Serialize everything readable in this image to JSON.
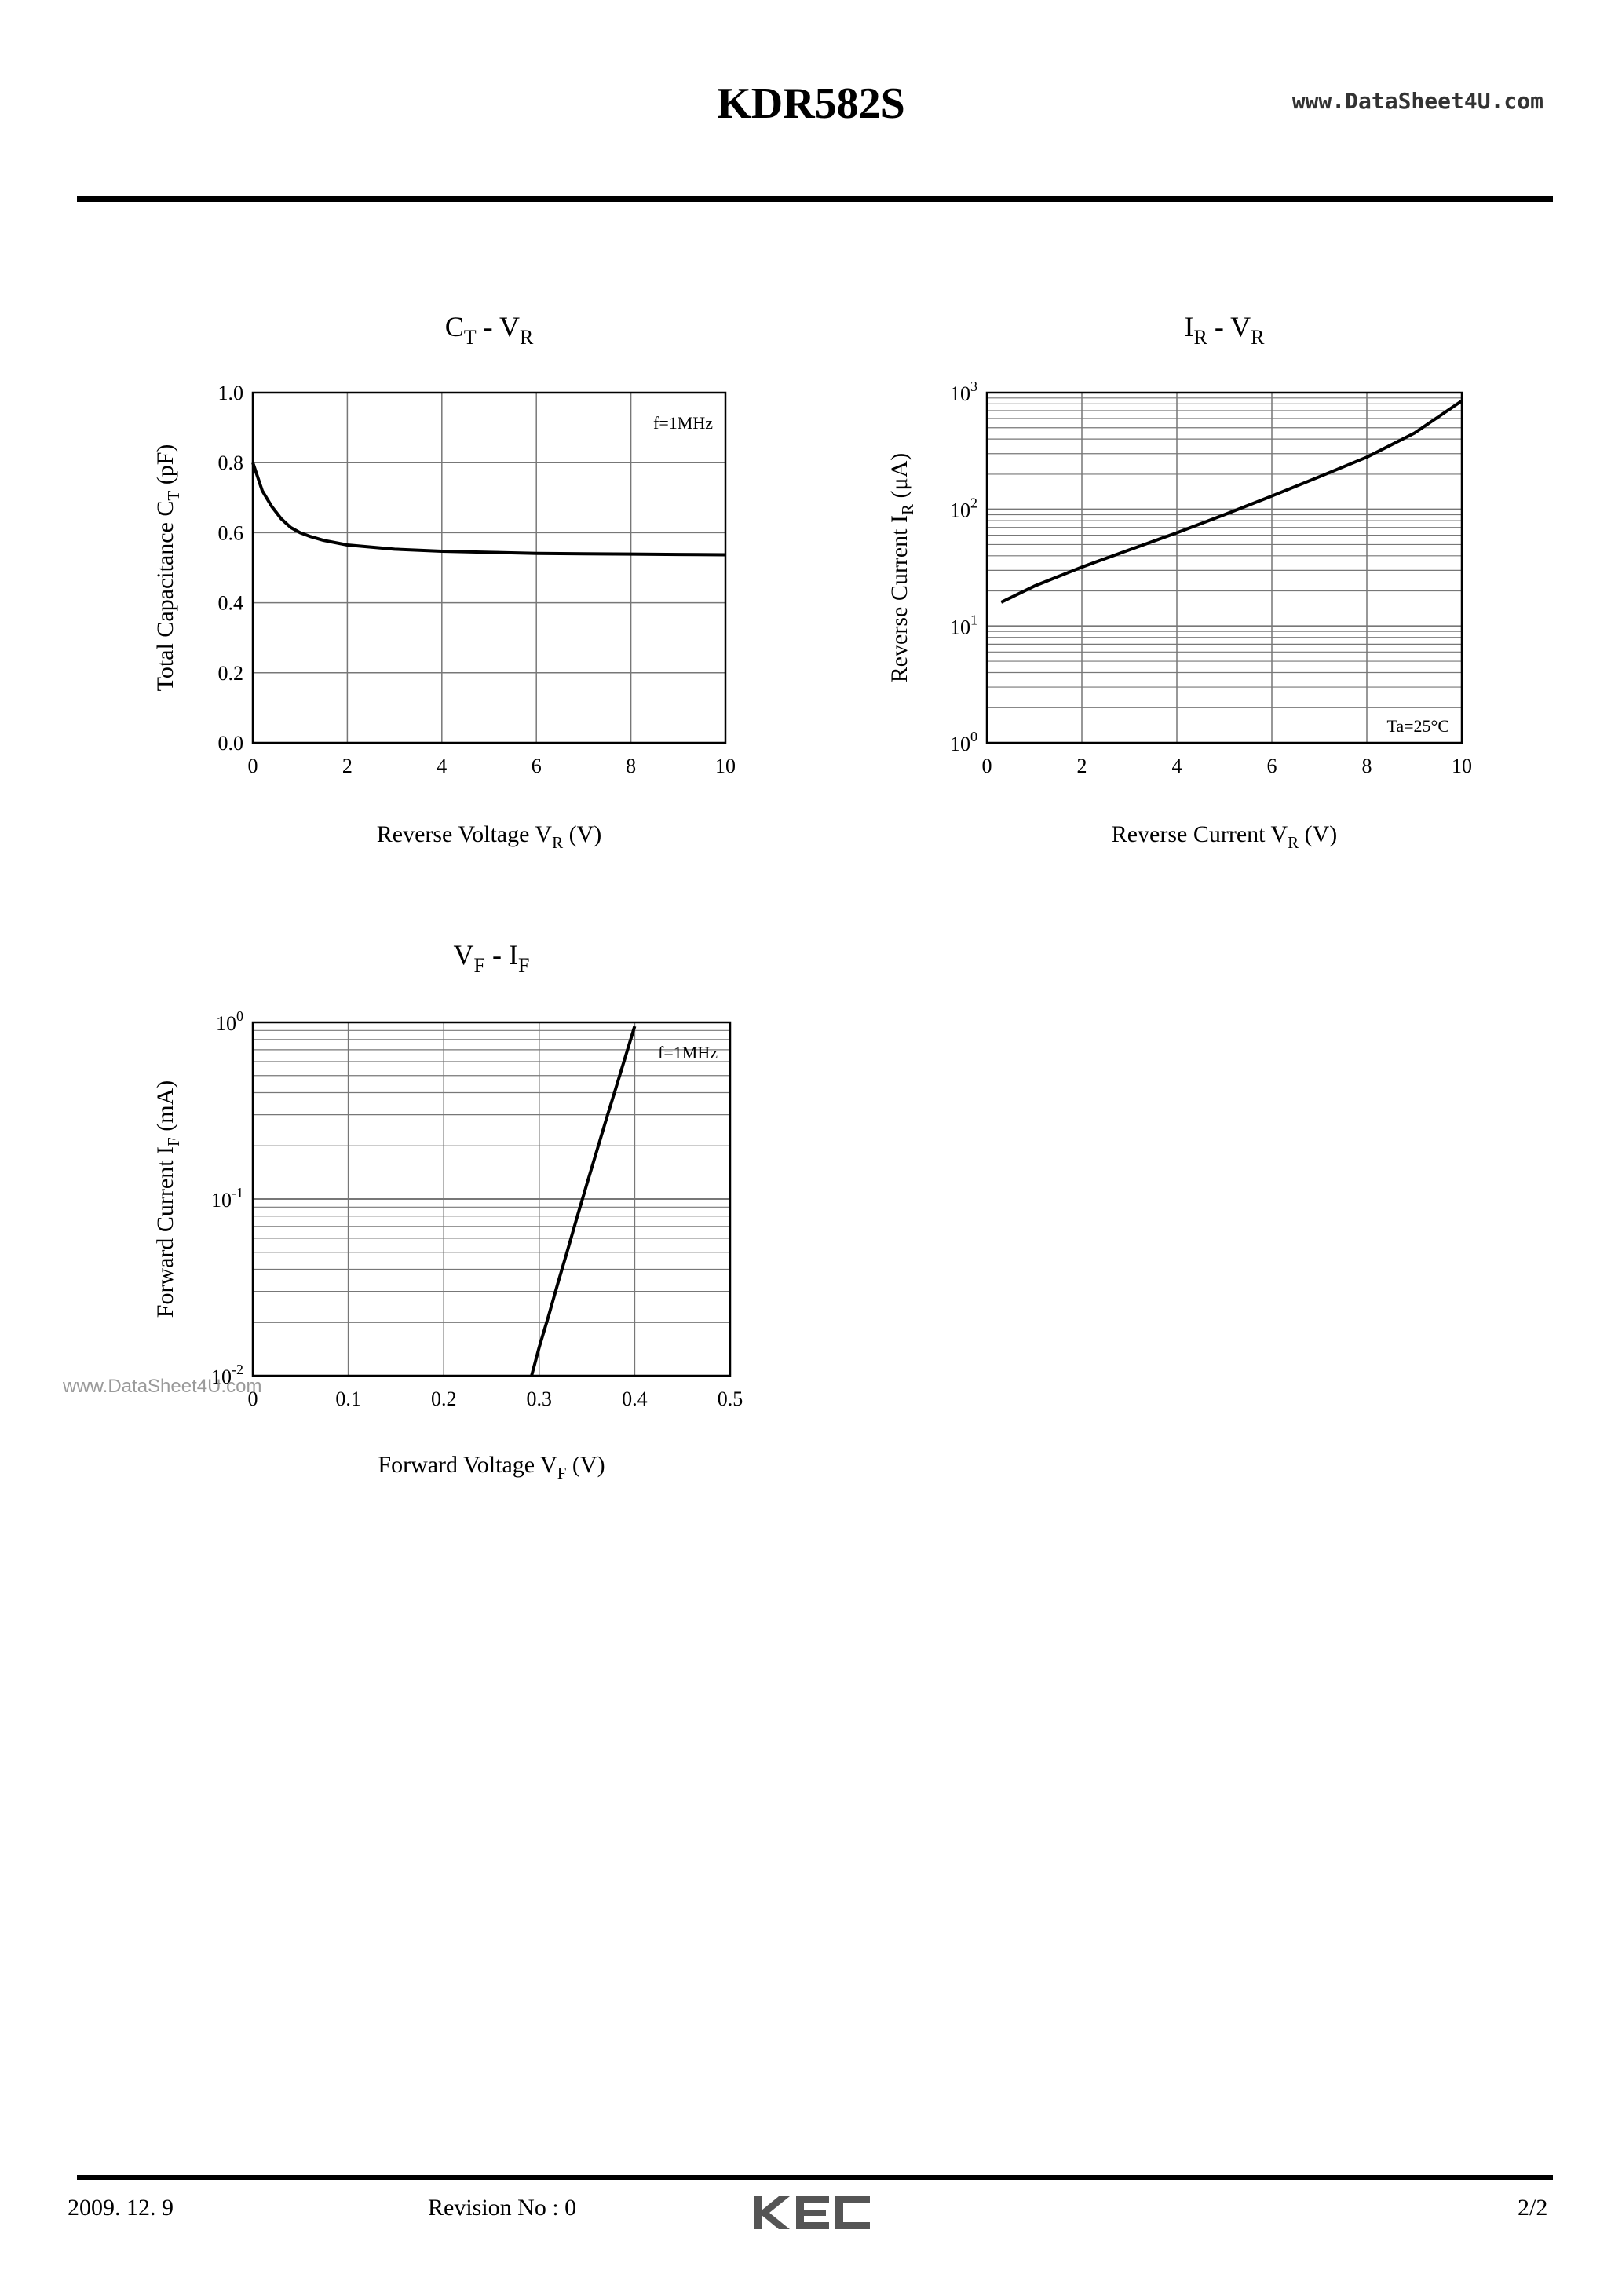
{
  "header": {
    "title": "KDR582S",
    "site": "www.DataSheet4U.com"
  },
  "watermark": "www.DataSheet4U.com",
  "footer": {
    "date": "2009. 12.  9",
    "revision": "Revision No : 0",
    "logo": "KEC",
    "page": "2/2"
  },
  "chart_data": [
    {
      "type": "line",
      "title": {
        "main": "C",
        "sub": "T",
        "sep": " - ",
        "main2": "V",
        "sub2": "R"
      },
      "xlabel": {
        "pre": "Reverse Voltage  V",
        "sub": "R",
        "post": " (V)"
      },
      "ylabel": {
        "pre": "Total Capacitance  C",
        "sub": "T",
        "post": " (pF)"
      },
      "annotation": "f=1MHz",
      "x_scale": "linear",
      "y_scale": "linear",
      "xlim": [
        0,
        10
      ],
      "ylim": [
        0.0,
        1.0
      ],
      "x_ticks": [
        "0",
        "2",
        "4",
        "6",
        "8",
        "10"
      ],
      "y_ticks": [
        "0.0",
        "0.2",
        "0.4",
        "0.6",
        "0.8",
        "1.0"
      ],
      "grid": true,
      "series": [
        {
          "x": [
            0.0,
            0.1,
            0.2,
            0.4,
            0.6,
            0.8,
            1.0,
            1.2,
            1.5,
            2.0,
            3.0,
            4.0,
            5.0,
            6.0,
            7.0,
            8.0,
            9.0,
            10.0
          ],
          "y": [
            0.8,
            0.76,
            0.72,
            0.675,
            0.64,
            0.615,
            0.6,
            0.59,
            0.578,
            0.565,
            0.553,
            0.547,
            0.544,
            0.541,
            0.54,
            0.539,
            0.538,
            0.537
          ]
        }
      ]
    },
    {
      "type": "line",
      "title": {
        "main": "I",
        "sub": "R",
        "sep": " - ",
        "main2": "V",
        "sub2": "R"
      },
      "xlabel": {
        "pre": "Reverse Current V",
        "sub": "R",
        "post": " (V)"
      },
      "ylabel": {
        "pre": "Reverse Current I",
        "sub": "R",
        "post": " (μA)"
      },
      "annotation": "Ta=25°C",
      "x_scale": "linear",
      "y_scale": "log",
      "xlim": [
        0,
        10
      ],
      "ylim": [
        1,
        1000
      ],
      "x_ticks": [
        "0",
        "2",
        "4",
        "6",
        "8",
        "10"
      ],
      "y_ticks": [
        {
          "base": "10",
          "exp": "0"
        },
        {
          "base": "10",
          "exp": "1"
        },
        {
          "base": "10",
          "exp": "2"
        },
        {
          "base": "10",
          "exp": "3"
        }
      ],
      "grid": true,
      "series": [
        {
          "x": [
            0.3,
            1.0,
            2.0,
            3.0,
            4.0,
            5.0,
            6.0,
            7.0,
            8.0,
            9.0,
            10.0
          ],
          "y": [
            16,
            22,
            32,
            45,
            63,
            90,
            130,
            190,
            280,
            450,
            850
          ]
        }
      ]
    },
    {
      "type": "line",
      "title": {
        "main": "V",
        "sub": "F",
        "sep": " - ",
        "main2": "I",
        "sub2": "F"
      },
      "xlabel": {
        "pre": "Forward Voltage  V",
        "sub": "F",
        "post": " (V)"
      },
      "ylabel": {
        "pre": "Forward Current  I",
        "sub": "F",
        "post": " (mA)"
      },
      "annotation": "f=1MHz",
      "x_scale": "linear",
      "y_scale": "log",
      "xlim": [
        0,
        0.5
      ],
      "ylim": [
        0.01,
        1
      ],
      "x_ticks": [
        "0",
        "0.1",
        "0.2",
        "0.3",
        "0.4",
        "0.5"
      ],
      "y_ticks": [
        {
          "base": "10",
          "exp": "-2"
        },
        {
          "base": "10",
          "exp": "-1"
        },
        {
          "base": "10",
          "exp": "0"
        }
      ],
      "grid": true,
      "series": [
        {
          "x": [
            0.292,
            0.3,
            0.31,
            0.32,
            0.33,
            0.34,
            0.35,
            0.36,
            0.37,
            0.38,
            0.39,
            0.4
          ],
          "y": [
            0.01,
            0.0145,
            0.022,
            0.034,
            0.052,
            0.08,
            0.122,
            0.185,
            0.28,
            0.42,
            0.63,
            0.95
          ]
        }
      ]
    }
  ]
}
